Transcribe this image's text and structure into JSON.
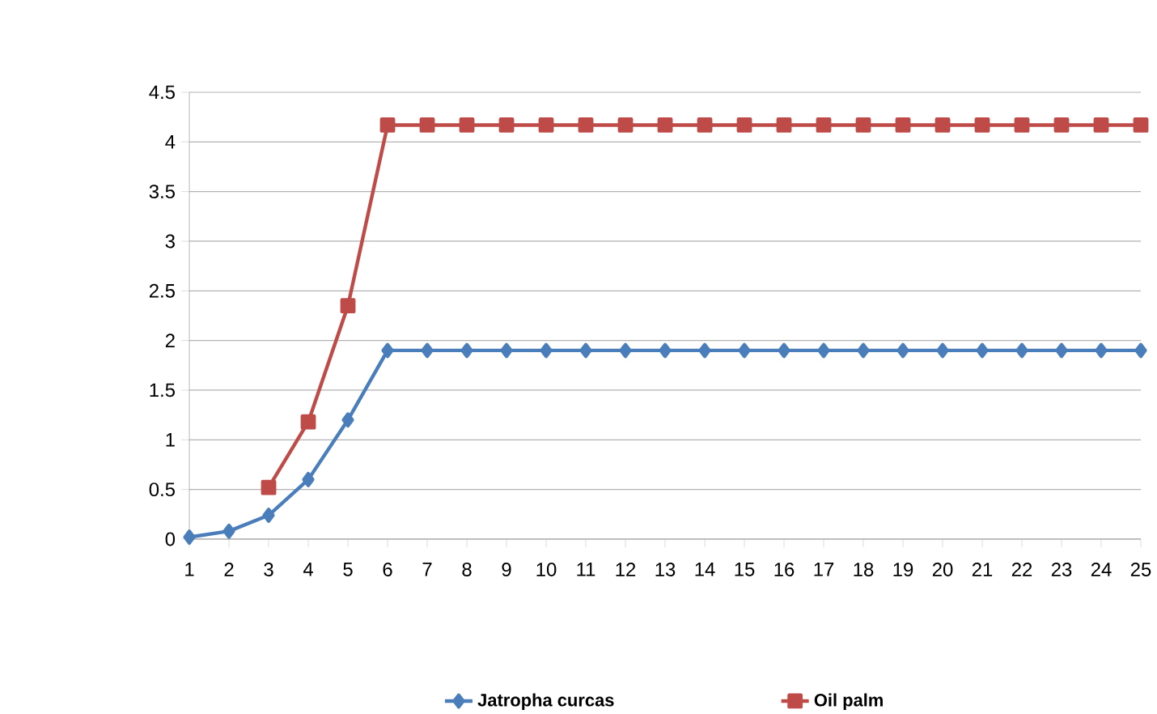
{
  "chart_data": {
    "type": "line",
    "x": [
      1,
      2,
      3,
      4,
      5,
      6,
      7,
      8,
      9,
      10,
      11,
      12,
      13,
      14,
      15,
      16,
      17,
      18,
      19,
      20,
      21,
      22,
      23,
      24,
      25
    ],
    "xlim": [
      1,
      25
    ],
    "xticks": [
      1,
      2,
      3,
      4,
      5,
      6,
      7,
      8,
      9,
      10,
      11,
      12,
      13,
      14,
      15,
      16,
      17,
      18,
      19,
      20,
      21,
      22,
      23,
      24,
      25
    ],
    "ylim": [
      0,
      4.5
    ],
    "yticks": [
      0,
      0.5,
      1,
      1.5,
      2,
      2.5,
      3,
      3.5,
      4,
      4.5
    ],
    "grid": "y",
    "legend": "bottom",
    "series": [
      {
        "name": "Jatropha curcas",
        "color": "#4a7ebb",
        "marker": "diamond",
        "values": [
          0.02,
          0.08,
          0.24,
          0.6,
          1.2,
          1.9,
          1.9,
          1.9,
          1.9,
          1.9,
          1.9,
          1.9,
          1.9,
          1.9,
          1.9,
          1.9,
          1.9,
          1.9,
          1.9,
          1.9,
          1.9,
          1.9,
          1.9,
          1.9,
          1.9
        ]
      },
      {
        "name": "Oil palm",
        "color": "#be4b48",
        "marker": "square",
        "values": [
          null,
          null,
          0.52,
          1.18,
          2.35,
          4.17,
          4.17,
          4.17,
          4.17,
          4.17,
          4.17,
          4.17,
          4.17,
          4.17,
          4.17,
          4.17,
          4.17,
          4.17,
          4.17,
          4.17,
          4.17,
          4.17,
          4.17,
          4.17,
          4.17
        ]
      }
    ]
  }
}
